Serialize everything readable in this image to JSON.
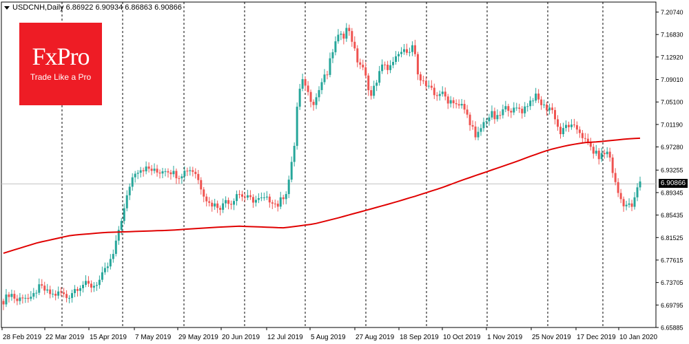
{
  "header": {
    "symbol": "USDCNH,Daily",
    "ohlc": "6.86922 6.90934 6.86863 6.90866"
  },
  "logo": {
    "main": "FxPro",
    "sub": "Trade Like a Pro"
  },
  "chart_data": {
    "type": "candlestick",
    "price_tag": "6.90866",
    "y_ticks": [
      "7.20740",
      "7.16830",
      "7.12920",
      "7.09010",
      "7.05100",
      "7.01190",
      "6.97280",
      "6.93255",
      "6.89345",
      "6.85435",
      "6.81525",
      "6.77615",
      "6.73705",
      "6.69795",
      "6.65885"
    ],
    "ylim": [
      6.65885,
      7.2074
    ],
    "x_labels": [
      "28 Feb 2019",
      "22 Mar 2019",
      "15 Apr 2019",
      "7 May 2019",
      "29 May 2019",
      "20 Jun 2019",
      "12 Jul 2019",
      "5 Aug 2019",
      "27 Aug 2019",
      "18 Sep 2019",
      "10 Oct 2019",
      "1 Nov 2019",
      "25 Nov 2019",
      "17 Dec 2019",
      "10 Jan 2020"
    ],
    "bar_count": 233,
    "bull_color": "#26a69a",
    "bear_color": "#ef5350",
    "ma_color": "#e00000",
    "grid": "vertical-dashed",
    "closes": [
      [
        0,
        6.705
      ],
      [
        4,
        6.72
      ],
      [
        8,
        6.705
      ],
      [
        12,
        6.715
      ],
      [
        16,
        6.705
      ],
      [
        20,
        6.725
      ],
      [
        22,
        6.73
      ],
      [
        26,
        6.72
      ],
      [
        30,
        6.715
      ],
      [
        34,
        6.72
      ],
      [
        38,
        6.71
      ],
      [
        42,
        6.725
      ],
      [
        45,
        6.73
      ],
      [
        48,
        6.735
      ],
      [
        53,
        6.73
      ],
      [
        57,
        6.74
      ],
      [
        60,
        6.755
      ],
      [
        63,
        6.77
      ],
      [
        66,
        6.79
      ],
      [
        69,
        6.835
      ],
      [
        72,
        6.865
      ],
      [
        75,
        6.905
      ],
      [
        78,
        6.93
      ],
      [
        82,
        6.935
      ],
      [
        86,
        6.935
      ],
      [
        92,
        6.928
      ],
      [
        96,
        6.935
      ],
      [
        100,
        6.93
      ],
      [
        104,
        6.922
      ],
      [
        110,
        6.935
      ],
      [
        114,
        6.93
      ],
      [
        118,
        6.9
      ],
      [
        122,
        6.875
      ],
      [
        126,
        6.872
      ],
      [
        130,
        6.868
      ],
      [
        133,
        6.885
      ],
      [
        135,
        6.872
      ],
      [
        139,
        6.893
      ],
      [
        144,
        6.885
      ],
      [
        149,
        6.88
      ],
      [
        155,
        6.882
      ],
      [
        160,
        6.88
      ],
      [
        163,
        6.87
      ],
      [
        166,
        6.885
      ],
      [
        168,
        6.892
      ],
      [
        169,
        6.903
      ],
      [
        171,
        6.932
      ],
      [
        173,
        6.97
      ],
      [
        174,
        7.01
      ],
      [
        175,
        7.05
      ],
      [
        177,
        7.08
      ],
      [
        179,
        7.09
      ],
      [
        182,
        7.06
      ],
      [
        185,
        7.05
      ],
      [
        187,
        7.065
      ],
      [
        190,
        7.09
      ],
      [
        193,
        7.1
      ],
      [
        195,
        7.13
      ],
      [
        197,
        7.15
      ],
      [
        199,
        7.16
      ],
      [
        201,
        7.175
      ],
      [
        203,
        7.165
      ],
      [
        205,
        7.185
      ],
      [
        207,
        7.165
      ],
      [
        209,
        7.14
      ],
      [
        211,
        7.12
      ],
      [
        213,
        7.115
      ],
      [
        215,
        7.1
      ],
      [
        217,
        7.08
      ],
      [
        219,
        7.06
      ],
      [
        221,
        7.08
      ],
      [
        223,
        7.095
      ],
      [
        225,
        7.11
      ],
      [
        227,
        7.12
      ],
      [
        229,
        7.105
      ],
      [
        231,
        7.115
      ],
      [
        233,
        7.12
      ],
      [
        235,
        7.14
      ],
      [
        237,
        7.135
      ],
      [
        239,
        7.14
      ],
      [
        241,
        7.125
      ],
      [
        243,
        7.155
      ],
      [
        245,
        7.13
      ],
      [
        247,
        7.1
      ],
      [
        249,
        7.09
      ],
      [
        251,
        7.08
      ],
      [
        253,
        7.075
      ],
      [
        255,
        7.07
      ],
      [
        257,
        7.06
      ],
      [
        259,
        7.068
      ],
      [
        261,
        7.065
      ],
      [
        263,
        7.06
      ],
      [
        265,
        7.052
      ],
      [
        267,
        7.055
      ],
      [
        269,
        7.05
      ],
      [
        271,
        7.042
      ],
      [
        273,
        7.045
      ],
      [
        275,
        7.035
      ],
      [
        277,
        7.02
      ],
      [
        279,
        7.01
      ],
      [
        281,
        6.985
      ],
      [
        283,
        6.998
      ],
      [
        285,
        7.01
      ],
      [
        287,
        7.02
      ],
      [
        289,
        7.025
      ],
      [
        291,
        7.03
      ],
      [
        293,
        7.02
      ],
      [
        295,
        7.025
      ],
      [
        297,
        7.035
      ],
      [
        299,
        7.04
      ],
      [
        301,
        7.042
      ],
      [
        303,
        7.035
      ],
      [
        305,
        7.038
      ],
      [
        307,
        7.04
      ],
      [
        309,
        7.035
      ],
      [
        311,
        7.045
      ],
      [
        313,
        7.05
      ],
      [
        315,
        7.058
      ],
      [
        317,
        7.06
      ],
      [
        319,
        7.052
      ],
      [
        321,
        7.045
      ],
      [
        323,
        7.04
      ],
      [
        325,
        7.042
      ],
      [
        327,
        7.035
      ],
      [
        329,
        7.02
      ],
      [
        331,
        6.995
      ],
      [
        333,
        7.0
      ],
      [
        335,
        7.01
      ],
      [
        337,
        7.01
      ],
      [
        339,
        7.005
      ],
      [
        341,
        7.005
      ],
      [
        343,
        7.0
      ],
      [
        345,
        6.99
      ],
      [
        347,
        6.98
      ],
      [
        349,
        6.975
      ],
      [
        351,
        6.965
      ],
      [
        353,
        6.96
      ],
      [
        355,
        6.955
      ],
      [
        357,
        6.96
      ],
      [
        359,
        6.965
      ],
      [
        361,
        6.955
      ],
      [
        363,
        6.925
      ],
      [
        365,
        6.9
      ],
      [
        367,
        6.885
      ],
      [
        369,
        6.875
      ],
      [
        371,
        6.872
      ],
      [
        373,
        6.87
      ],
      [
        375,
        6.87
      ],
      [
        377,
        6.9
      ],
      [
        379,
        6.91
      ]
    ],
    "ma200": [
      [
        0,
        6.788
      ],
      [
        20,
        6.806
      ],
      [
        40,
        6.819
      ],
      [
        60,
        6.824
      ],
      [
        80,
        6.826
      ],
      [
        100,
        6.828
      ],
      [
        120,
        6.832
      ],
      [
        140,
        6.835
      ],
      [
        160,
        6.833
      ],
      [
        166,
        6.832
      ],
      [
        172,
        6.834
      ],
      [
        185,
        6.839
      ],
      [
        200,
        6.85
      ],
      [
        215,
        6.862
      ],
      [
        230,
        6.874
      ],
      [
        245,
        6.887
      ],
      [
        260,
        6.901
      ],
      [
        275,
        6.917
      ],
      [
        290,
        6.932
      ],
      [
        305,
        6.947
      ],
      [
        315,
        6.958
      ],
      [
        325,
        6.968
      ],
      [
        335,
        6.975
      ],
      [
        345,
        6.98
      ],
      [
        355,
        6.982
      ],
      [
        365,
        6.985
      ],
      [
        372,
        6.987
      ],
      [
        379,
        6.988
      ]
    ]
  }
}
